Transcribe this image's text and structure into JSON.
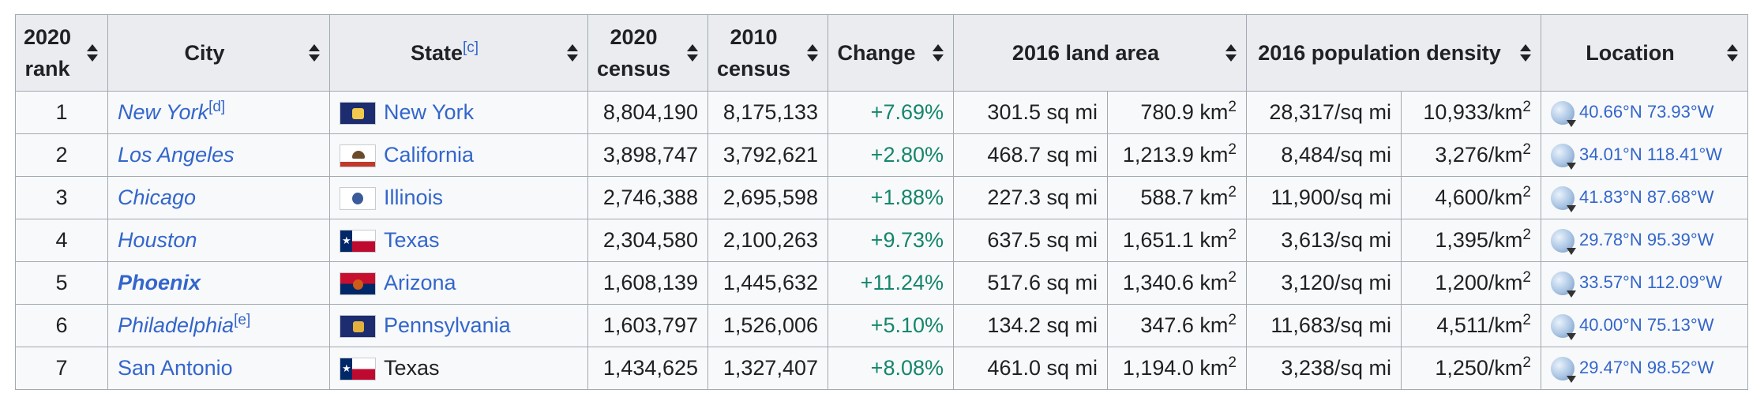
{
  "headers": {
    "rank": "2020 rank",
    "city": "City",
    "state": "State",
    "state_note": "[c]",
    "census2020": "2020 census",
    "census2010": "2010 census",
    "change": "Change",
    "land_area": "2016 land area",
    "density": "2016 population density",
    "location": "Location"
  },
  "rows": [
    {
      "rank": "1",
      "city": "New York",
      "city_note": "[d]",
      "state": "New York",
      "flag": "flag-ny",
      "c2020": "8,804,190",
      "c2010": "8,175,133",
      "change": "+7.69%",
      "area_mi": "301.5 sq mi",
      "area_km": "780.9 km",
      "dens_mi": "28,317/sq mi",
      "dens_km": "10,933/km",
      "loc": "40.66°N 73.93°W"
    },
    {
      "rank": "2",
      "city": "Los Angeles",
      "city_note": "",
      "state": "California",
      "flag": "flag-ca",
      "c2020": "3,898,747",
      "c2010": "3,792,621",
      "change": "+2.80%",
      "area_mi": "468.7 sq mi",
      "area_km": "1,213.9 km",
      "dens_mi": "8,484/sq mi",
      "dens_km": "3,276/km",
      "loc": "34.01°N 118.41°W"
    },
    {
      "rank": "3",
      "city": "Chicago",
      "city_note": "",
      "state": "Illinois",
      "flag": "flag-il",
      "c2020": "2,746,388",
      "c2010": "2,695,598",
      "change": "+1.88%",
      "area_mi": "227.3 sq mi",
      "area_km": "588.7 km",
      "dens_mi": "11,900/sq mi",
      "dens_km": "4,600/km",
      "loc": "41.83°N 87.68°W"
    },
    {
      "rank": "4",
      "city": "Houston",
      "city_note": "",
      "state": "Texas",
      "flag": "flag-tx",
      "c2020": "2,304,580",
      "c2010": "2,100,263",
      "change": "+9.73%",
      "area_mi": "637.5 sq mi",
      "area_km": "1,651.1 km",
      "dens_mi": "3,613/sq mi",
      "dens_km": "1,395/km",
      "loc": "29.78°N 95.39°W"
    },
    {
      "rank": "5",
      "city": "Phoenix",
      "city_note": "",
      "state": "Arizona",
      "flag": "flag-az",
      "c2020": "1,608,139",
      "c2010": "1,445,632",
      "change": "+11.24%",
      "area_mi": "517.6 sq mi",
      "area_km": "1,340.6 km",
      "dens_mi": "3,120/sq mi",
      "dens_km": "1,200/km",
      "loc": "33.57°N 112.09°W"
    },
    {
      "rank": "6",
      "city": "Philadelphia",
      "city_note": "[e]",
      "state": "Pennsylvania",
      "flag": "flag-pa",
      "c2020": "1,603,797",
      "c2010": "1,526,006",
      "change": "+5.10%",
      "area_mi": "134.2 sq mi",
      "area_km": "347.6 km",
      "dens_mi": "11,683/sq mi",
      "dens_km": "4,511/km",
      "loc": "40.00°N 75.13°W"
    },
    {
      "rank": "7",
      "city": "San Antonio",
      "city_note": "",
      "state": "Texas",
      "flag": "flag-tx",
      "c2020": "1,434,625",
      "c2010": "1,327,407",
      "change": "+8.08%",
      "area_mi": "461.0 sq mi",
      "area_km": "1,194.0 km",
      "dens_mi": "3,238/sq mi",
      "dens_km": "1,250/km",
      "loc": "29.47°N 98.52°W"
    }
  ],
  "unit_superscript": "2",
  "colors": {
    "link": "#3366cc",
    "positive_change": "#14866d",
    "header_bg": "#eaecf0",
    "capital_bg": "#d6eaee",
    "highlight_bg": "#d0f79e",
    "border": "#a2a9b1"
  },
  "icons": {
    "sort": "sort-arrows-icon",
    "location": "globe-icon"
  }
}
